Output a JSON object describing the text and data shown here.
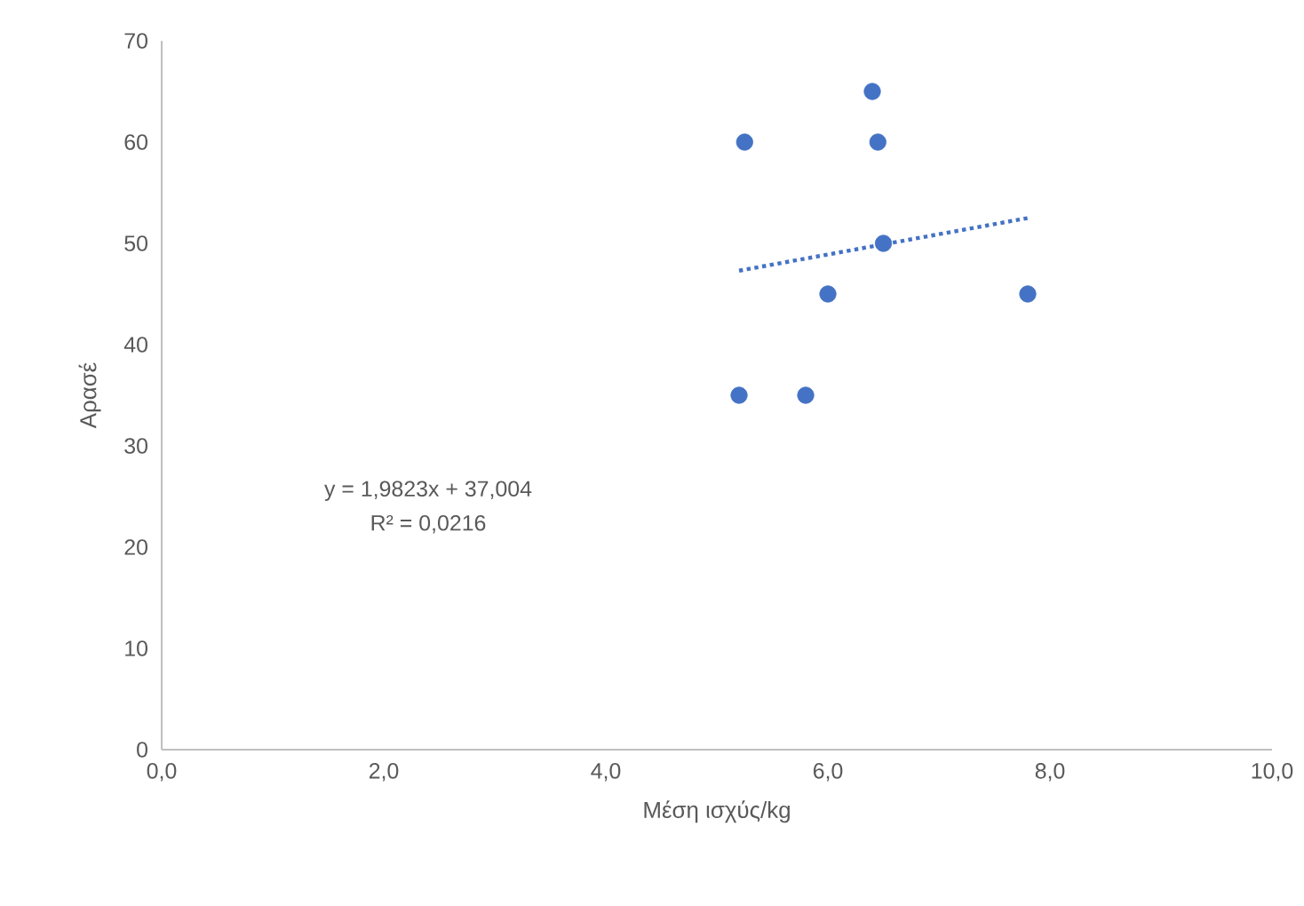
{
  "chart_data": {
    "type": "scatter",
    "xlabel": "Μέση ισχύς/kg",
    "ylabel": "Αρασέ",
    "marker": "circle",
    "series": [
      {
        "color": "#4472c4",
        "x": [
          5.2,
          5.25,
          5.8,
          6.0,
          6.4,
          6.45,
          6.5,
          7.8
        ],
        "values": [
          35,
          60,
          35,
          45,
          65,
          60,
          50,
          45
        ]
      },
      {
        "type": "line",
        "color": "#4472c4",
        "marker": "none",
        "line_style": "dotted",
        "x": [
          5.2,
          7.8
        ],
        "values": [
          47.3,
          52.5
        ]
      }
    ],
    "xlim": [
      0,
      10
    ],
    "ylim": [
      0,
      70
    ],
    "xticks": [
      {
        "value": 0,
        "label": "0,0"
      },
      {
        "value": 2,
        "label": "2,0"
      },
      {
        "value": 4,
        "label": "4,0"
      },
      {
        "value": 6,
        "label": "6,0"
      },
      {
        "value": 8,
        "label": "8,0"
      },
      {
        "value": 10,
        "label": "10,0"
      }
    ],
    "yticks": [
      0,
      10,
      20,
      30,
      40,
      50,
      60,
      70
    ],
    "annotations": [
      "y = 1,9823x + 37,004",
      "R² = 0,0216"
    ],
    "grid": false
  }
}
